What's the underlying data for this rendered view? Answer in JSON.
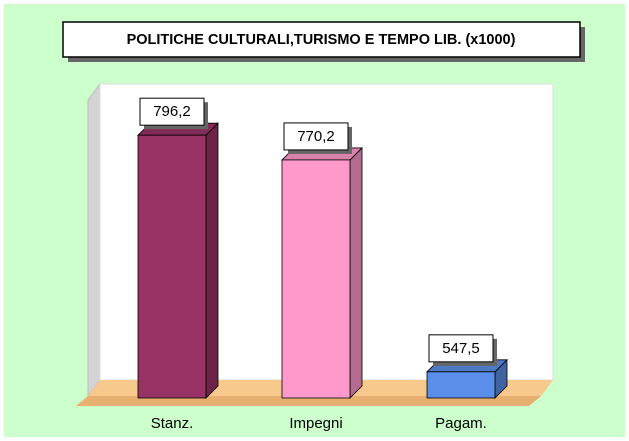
{
  "chart_data": {
    "type": "bar3d",
    "title": "POLITICHE CULTURALI,TURISMO E TEMPO LIB. (x1000)",
    "categories": [
      "Stanz.",
      "Impegni",
      "Pagam."
    ],
    "values": [
      796.2,
      770.2,
      547.5
    ],
    "value_labels": [
      "796,2",
      "770,2",
      "547,5"
    ],
    "colors": [
      "#993366",
      "#ff99cc",
      "#5b8ee8"
    ],
    "ylim": [
      520,
      850
    ]
  }
}
